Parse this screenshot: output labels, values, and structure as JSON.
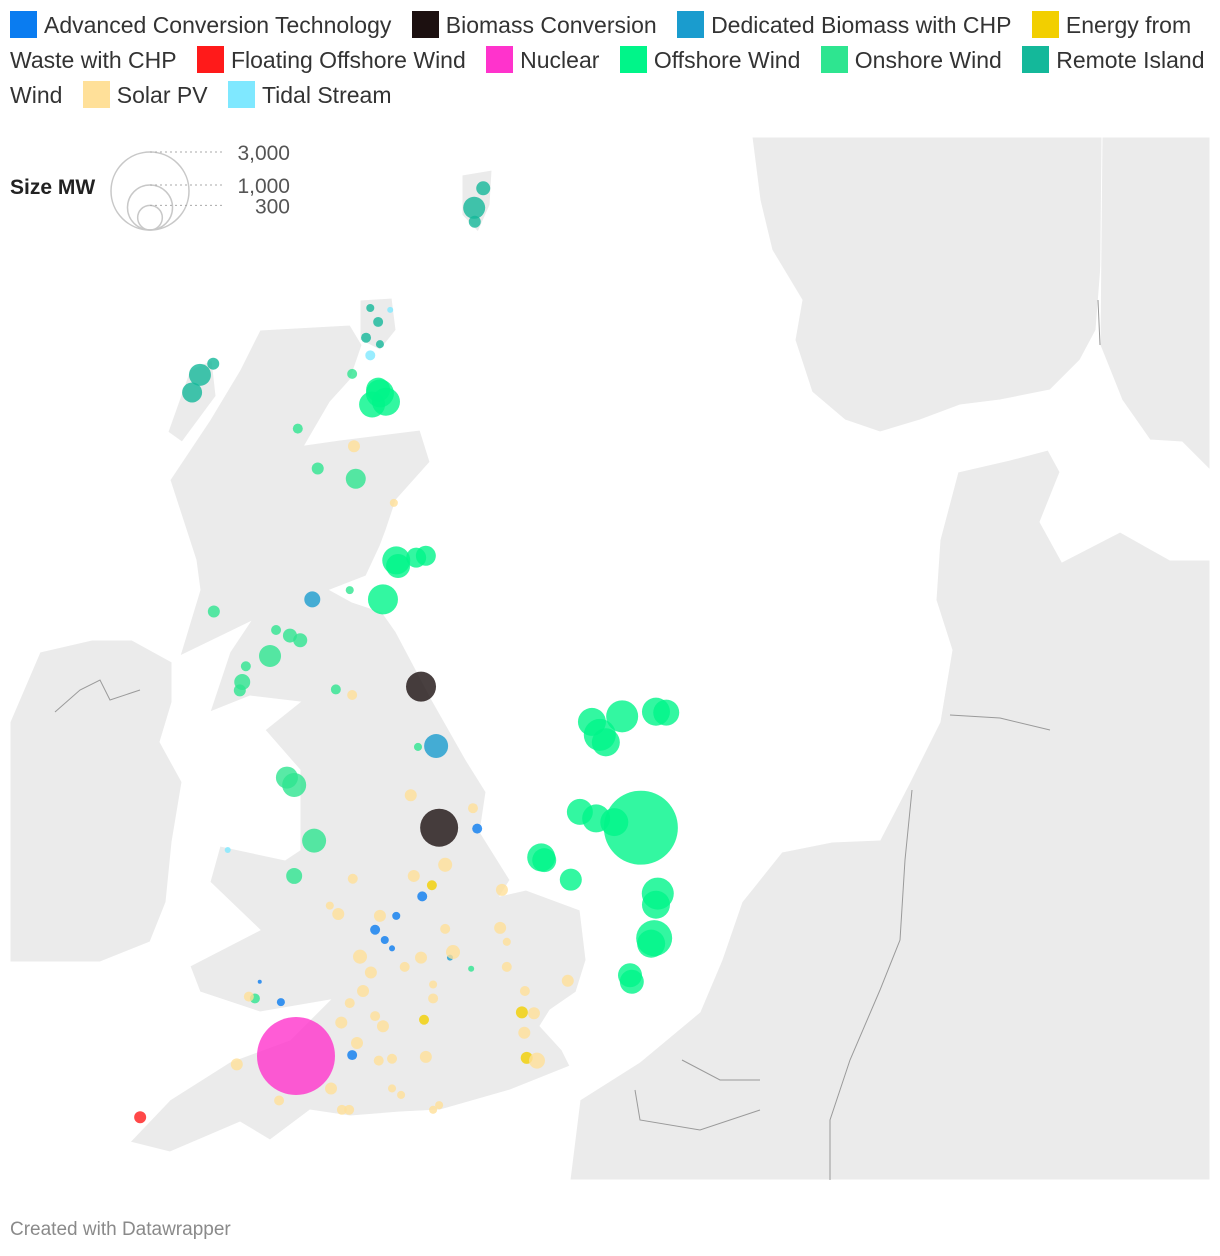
{
  "chart_data": {
    "type": "map",
    "size_legend": {
      "title": "Size MW",
      "ticks": [
        {
          "value": 3000,
          "label": "3,000"
        },
        {
          "value": 1000,
          "label": "1,000"
        },
        300
      ]
    },
    "credit": "Created with Datawrapper",
    "series": [
      {
        "name": "Advanced Conversion Technology",
        "color": "#0a7cf0",
        "lon": [
          -0.03,
          -0.94,
          -1.37,
          -1.72,
          -1.56,
          -1.44,
          -3.63,
          -3.28,
          -2.1
        ],
        "lat": [
          53.43,
          52.7,
          52.49,
          52.34,
          52.23,
          52.14,
          51.78,
          51.56,
          50.99
        ],
        "values": [
          49,
          49,
          32,
          49,
          32,
          18,
          8,
          32,
          49
        ]
      },
      {
        "name": "Biomass Conversion",
        "color": "#1c1010",
        "lon": [
          -0.96,
          -0.66
        ],
        "lat": [
          54.96,
          53.44
        ],
        "values": [
          444,
          712
        ]
      },
      {
        "name": "Dedicated Biomass with CHP",
        "color": "#1a9cce",
        "lon": [
          -2.76,
          -0.71,
          -0.48
        ],
        "lat": [
          55.9,
          54.32,
          52.04
        ],
        "values": [
          126,
          284,
          18
        ]
      },
      {
        "name": "Energy from Waste with CHP",
        "color": "#f2cf00",
        "lon": [
          -0.78,
          0.71,
          0.79,
          -0.91
        ],
        "lat": [
          52.82,
          51.45,
          50.96,
          51.37
        ],
        "values": [
          49,
          71,
          71,
          49
        ]
      },
      {
        "name": "Floating Offshore Wind",
        "color": "#ff1a1a",
        "lon": [
          -5.61
        ],
        "lat": [
          50.32
        ],
        "values": [
          71
        ]
      },
      {
        "name": "Nuclear",
        "color": "#ff33cc",
        "lon": [
          -3.03
        ],
        "lat": [
          50.98
        ],
        "values": [
          3000
        ]
      },
      {
        "name": "Offshore Wind",
        "color": "#00f589",
        "lon": [
          -1.64,
          -1.77,
          -1.54,
          -1.67,
          -1.37,
          -1.34,
          -1.04,
          -0.88,
          -1.59,
          1.87,
          2.37,
          2.93,
          3.1,
          2.0,
          2.1,
          1.67,
          1.94,
          2.24,
          2.68,
          1.03,
          1.08,
          1.52,
          2.96,
          2.93,
          2.9,
          2.85,
          2.5,
          2.53
        ],
        "lat": [
          58.12,
          58.0,
          58.03,
          58.16,
          56.32,
          56.26,
          56.35,
          56.37,
          55.9,
          54.58,
          54.64,
          54.69,
          54.68,
          54.44,
          54.36,
          53.61,
          53.54,
          53.5,
          53.44,
          53.12,
          53.09,
          52.88,
          52.73,
          52.61,
          52.25,
          52.19,
          51.85,
          51.78
        ],
        "values": [
          387,
          333,
          387,
          284,
          387,
          284,
          197,
          197,
          444,
          387,
          505,
          387,
          333,
          505,
          387,
          333,
          387,
          387,
          2700,
          387,
          284,
          239,
          505,
          387,
          639,
          387,
          284,
          284
        ]
      },
      {
        "name": "Onshore Wind",
        "color": "#2ee590",
        "lon": [
          -2.1,
          -3.0,
          -2.67,
          -2.04,
          -2.14,
          -4.39,
          -3.36,
          -3.13,
          -2.96,
          -3.46,
          -3.86,
          -3.92,
          -3.96,
          -2.37,
          -1.01,
          -3.18,
          -3.06,
          -2.73,
          -3.06,
          -0.13,
          -3.71
        ],
        "lat": [
          58.33,
          57.74,
          57.31,
          57.2,
          56.0,
          55.77,
          55.57,
          55.51,
          55.46,
          55.29,
          55.18,
          55.01,
          54.92,
          54.93,
          54.31,
          53.98,
          53.9,
          53.3,
          52.92,
          51.92,
          51.6
        ],
        "values": [
          49,
          49,
          71,
          197,
          32,
          71,
          49,
          97,
          97,
          239,
          49,
          126,
          71,
          49,
          32,
          239,
          284,
          284,
          126,
          18,
          49
        ]
      },
      {
        "name": "Remote Island Wind",
        "color": "#14b89a",
        "lon": [
          0.07,
          -0.08,
          -0.07,
          -1.8,
          -1.67,
          -1.87,
          -1.64,
          -4.62,
          -4.75,
          -4.4
        ],
        "lat": [
          60.33,
          60.12,
          59.97,
          59.04,
          58.89,
          58.72,
          58.65,
          58.32,
          58.13,
          58.44
        ],
        "values": [
          97,
          239,
          71,
          32,
          49,
          49,
          32,
          239,
          197,
          71
        ]
      },
      {
        "name": "Solar PV",
        "color": "#ffe099",
        "lon": [
          -2.07,
          -1.41,
          -2.1,
          -1.13,
          -0.1,
          -0.56,
          -1.08,
          -2.09,
          0.38,
          -2.47,
          -2.33,
          -1.64,
          -0.56,
          0.35,
          0.46,
          -0.43,
          -0.96,
          -1.97,
          -1.23,
          -1.79,
          0.46,
          -0.76,
          1.47,
          -1.92,
          -0.76,
          0.76,
          -3.81,
          -2.14,
          0.91,
          -1.72,
          -2.28,
          -1.59,
          0.75,
          -2.02,
          -0.88,
          -4.01,
          0.96,
          -1.66,
          -1.44,
          -2.45,
          -1.44,
          -3.31,
          -2.27,
          -2.15,
          -1.29,
          -0.66,
          -0.76
        ],
        "lat": [
          57.55,
          56.94,
          54.87,
          53.79,
          53.65,
          53.04,
          52.92,
          52.89,
          52.77,
          52.6,
          52.51,
          52.49,
          52.35,
          52.36,
          52.21,
          52.1,
          52.04,
          52.05,
          51.94,
          51.88,
          51.94,
          51.75,
          51.79,
          51.68,
          51.6,
          51.68,
          51.62,
          51.55,
          51.44,
          51.41,
          51.34,
          51.3,
          51.23,
          51.12,
          50.97,
          50.89,
          50.93,
          50.93,
          50.95,
          50.63,
          50.63,
          50.5,
          50.4,
          50.4,
          50.56,
          50.45,
          50.4
        ],
        "values": [
          71,
          32,
          49,
          71,
          49,
          97,
          71,
          49,
          71,
          32,
          71,
          71,
          49,
          71,
          32,
          97,
          71,
          97,
          49,
          71,
          49,
          32,
          71,
          71,
          49,
          49,
          49,
          49,
          71,
          49,
          71,
          71,
          71,
          71,
          71,
          71,
          126,
          49,
          49,
          71,
          32,
          49,
          49,
          49,
          32,
          32,
          32
        ]
      },
      {
        "name": "Tidal Stream",
        "color": "#7fe8ff",
        "lon": [
          -1.47,
          -1.8,
          -4.16
        ],
        "lat": [
          59.02,
          58.53,
          53.2
        ],
        "values": [
          18,
          49,
          18
        ]
      }
    ]
  }
}
